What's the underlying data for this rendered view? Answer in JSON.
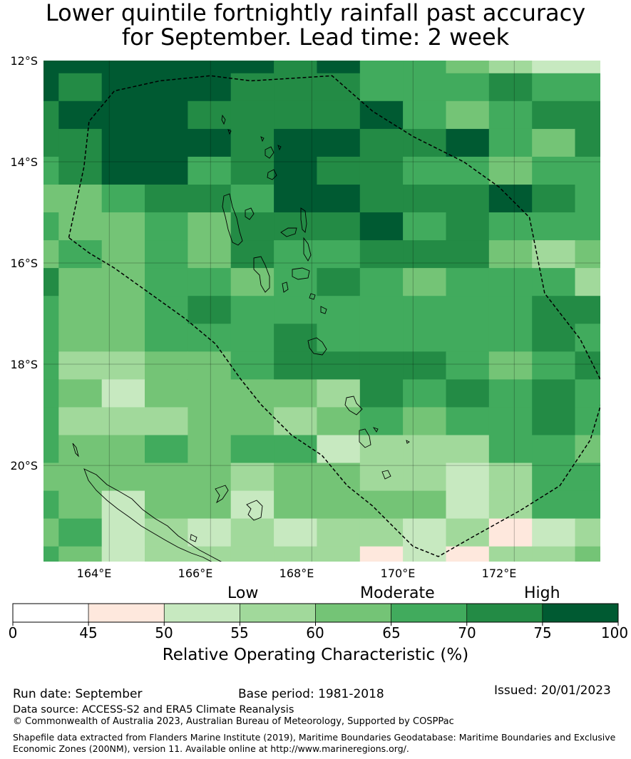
{
  "title_line1": "Lower quintile fortnightly rainfall past accuracy",
  "title_line2": "for September. Lead time: 2 week",
  "map": {
    "lat_labels": [
      "12°S",
      "14°S",
      "16°S",
      "18°S",
      "20°S"
    ],
    "lon_labels": [
      "164°E",
      "166°E",
      "168°E",
      "170°E",
      "172°E"
    ],
    "extent": {
      "lon_min": 162.7,
      "lon_max": 173.7,
      "lat_min": -21.9,
      "lat_max": -12.0
    },
    "grid_lon_edges": [
      162.7,
      163.0,
      163.85,
      164.7,
      165.55,
      166.4,
      167.25,
      168.1,
      168.95,
      169.8,
      170.65,
      171.5,
      172.35,
      173.2,
      173.7
    ],
    "grid_lat_edges": [
      -12.0,
      -12.25,
      -12.8,
      -13.35,
      -13.9,
      -14.45,
      -15.0,
      -15.55,
      -16.1,
      -16.65,
      -17.2,
      -17.75,
      -18.3,
      -18.85,
      -19.4,
      -19.95,
      -20.5,
      -21.05,
      -21.6,
      -21.9
    ],
    "roc_grid": [
      [
        7,
        7,
        7,
        7,
        7,
        7,
        6,
        7,
        5,
        5,
        4,
        3,
        2,
        2
      ],
      [
        7,
        6,
        7,
        7,
        7,
        6,
        6,
        6,
        5,
        5,
        5,
        6,
        5,
        5
      ],
      [
        6,
        7,
        7,
        7,
        6,
        6,
        6,
        6,
        7,
        5,
        4,
        5,
        6,
        6
      ],
      [
        6,
        6,
        7,
        7,
        7,
        6,
        7,
        7,
        6,
        6,
        7,
        5,
        4,
        6
      ],
      [
        5,
        6,
        7,
        7,
        5,
        6,
        7,
        6,
        6,
        5,
        5,
        4,
        5,
        5
      ],
      [
        4,
        4,
        5,
        6,
        6,
        5,
        7,
        7,
        6,
        6,
        6,
        7,
        6,
        5
      ],
      [
        5,
        4,
        4,
        5,
        4,
        6,
        6,
        6,
        7,
        5,
        6,
        5,
        5,
        5
      ],
      [
        4,
        5,
        4,
        5,
        4,
        6,
        5,
        5,
        6,
        6,
        6,
        4,
        3,
        4
      ],
      [
        6,
        4,
        4,
        5,
        5,
        4,
        5,
        6,
        5,
        4,
        5,
        5,
        5,
        3
      ],
      [
        5,
        4,
        4,
        5,
        6,
        5,
        5,
        5,
        5,
        5,
        5,
        5,
        6,
        6
      ],
      [
        5,
        4,
        4,
        5,
        5,
        5,
        6,
        5,
        5,
        5,
        5,
        5,
        6,
        5
      ],
      [
        5,
        3,
        3,
        4,
        4,
        5,
        6,
        6,
        6,
        6,
        5,
        4,
        5,
        6
      ],
      [
        5,
        4,
        2,
        4,
        4,
        4,
        4,
        3,
        6,
        5,
        6,
        5,
        6,
        5
      ],
      [
        5,
        3,
        3,
        3,
        4,
        4,
        3,
        4,
        5,
        4,
        5,
        5,
        6,
        5
      ],
      [
        5,
        4,
        4,
        5,
        4,
        5,
        5,
        2,
        3,
        3,
        3,
        5,
        5,
        4
      ],
      [
        4,
        4,
        4,
        4,
        4,
        3,
        4,
        4,
        3,
        3,
        2,
        3,
        5,
        5
      ],
      [
        5,
        4,
        2,
        4,
        4,
        2,
        4,
        4,
        4,
        4,
        2,
        3,
        5,
        5
      ],
      [
        4,
        5,
        2,
        3,
        2,
        3,
        2,
        3,
        3,
        2,
        3,
        1,
        2,
        3
      ],
      [
        5,
        4,
        2,
        3,
        3,
        3,
        3,
        3,
        1,
        2,
        1,
        3,
        3,
        4
      ]
    ],
    "boundary": [
      [
        163.2,
        -15.5
      ],
      [
        163.5,
        -14.1
      ],
      [
        163.6,
        -13.2
      ],
      [
        164.1,
        -12.6
      ],
      [
        165.0,
        -12.4
      ],
      [
        166.0,
        -12.3
      ],
      [
        166.8,
        -12.4
      ],
      [
        167.6,
        -12.35
      ],
      [
        168.4,
        -12.3
      ],
      [
        169.2,
        -13.0
      ],
      [
        170.0,
        -13.5
      ],
      [
        171.0,
        -14.0
      ],
      [
        171.7,
        -14.5
      ],
      [
        172.3,
        -15.1
      ],
      [
        172.6,
        -16.6
      ],
      [
        173.3,
        -17.5
      ],
      [
        173.8,
        -18.5
      ],
      [
        173.5,
        -19.5
      ],
      [
        172.9,
        -20.4
      ],
      [
        172.1,
        -20.9
      ],
      [
        171.2,
        -21.4
      ],
      [
        170.5,
        -21.8
      ],
      [
        170.0,
        -21.6
      ],
      [
        169.7,
        -21.3
      ],
      [
        169.2,
        -20.8
      ],
      [
        168.7,
        -20.4
      ],
      [
        168.2,
        -19.8
      ],
      [
        167.6,
        -19.4
      ],
      [
        167.0,
        -18.8
      ],
      [
        166.6,
        -18.3
      ],
      [
        166.1,
        -17.6
      ],
      [
        165.5,
        -17.1
      ],
      [
        164.8,
        -16.6
      ],
      [
        164.1,
        -16.1
      ],
      [
        163.6,
        -15.8
      ],
      [
        163.2,
        -15.5
      ]
    ]
  },
  "colorbar": {
    "categories": [
      "Low",
      "Moderate",
      "High"
    ],
    "ticks": [
      "0",
      "45",
      "50",
      "55",
      "60",
      "65",
      "70",
      "75",
      "100"
    ],
    "colors": [
      "#ffffff",
      "#fee8dd",
      "#c7e9c0",
      "#a1d99b",
      "#74c476",
      "#41ab5d",
      "#238b45",
      "#005a32"
    ],
    "label": "Relative Operating Characteristic (%)"
  },
  "footer": {
    "run_date": "Run date: September",
    "base_period": "Base period: 1981-2018",
    "issued": "Issued: 20/01/2023",
    "data_source": "Data source: ACCESS-S2 and ERA5 Climate Reanalysis",
    "copyright": "© Commonwealth of Australia 2023, Australian Bureau of Meteorology, Supported by COSPPac",
    "shapefile_line1": "Shapefile data extracted from Flanders Marine Institute (2019), Maritime Boundaries Geodatabase: Maritime Boundaries and Exclusive",
    "shapefile_line2": "Economic Zones (200NM), version 11. Available online at http://www.marineregions.org/."
  }
}
